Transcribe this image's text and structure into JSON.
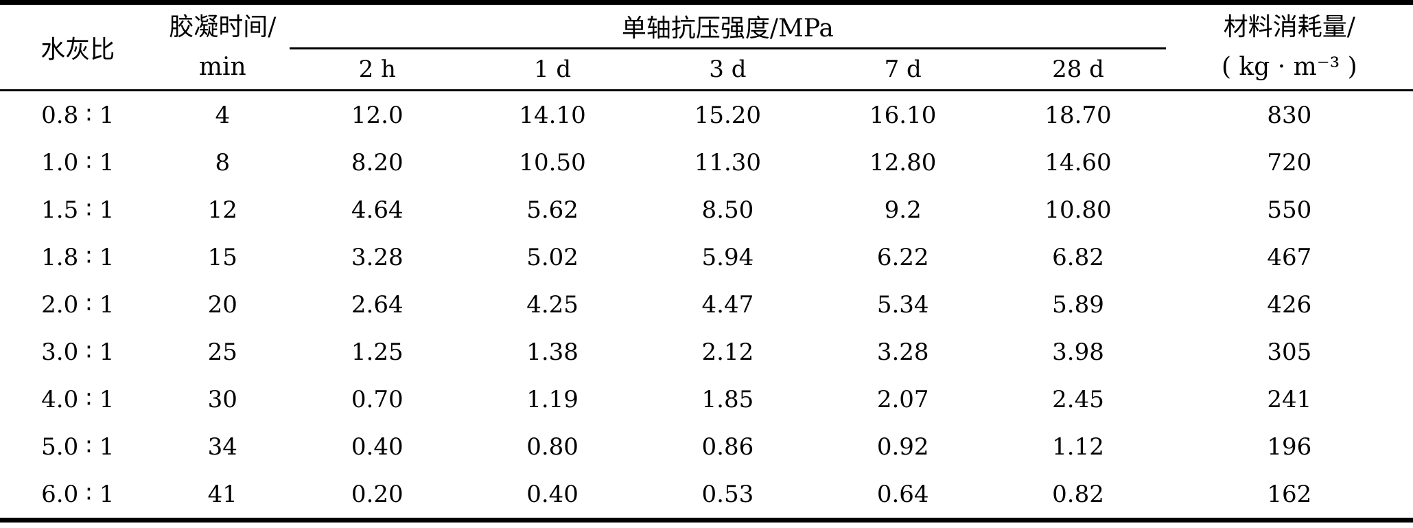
{
  "page": {
    "background_color": "#ffffff",
    "text_color": "#000000",
    "rule_color": "#000000"
  },
  "table": {
    "headers": {
      "ratio": "水灰比",
      "gel_time_line1": "胶凝时间/",
      "gel_time_line2": "min",
      "strength_group": "单轴抗压强度/MPa",
      "strength_subcols": [
        "2 h",
        "1 d",
        "3 d",
        "7 d",
        "28 d"
      ],
      "consumption_line1": "材料消耗量/",
      "consumption_line2": "( kg · m⁻³ )"
    },
    "rows": [
      {
        "ratio": "0.8 ∶ 1",
        "gel_time": "4",
        "strengths": [
          "12.0",
          "14.10",
          "15.20",
          "16.10",
          "18.70"
        ],
        "consumption": "830"
      },
      {
        "ratio": "1.0 ∶ 1",
        "gel_time": "8",
        "strengths": [
          "8.20",
          "10.50",
          "11.30",
          "12.80",
          "14.60"
        ],
        "consumption": "720"
      },
      {
        "ratio": "1.5 ∶ 1",
        "gel_time": "12",
        "strengths": [
          "4.64",
          "5.62",
          "8.50",
          "9.2",
          "10.80"
        ],
        "consumption": "550"
      },
      {
        "ratio": "1.8 ∶ 1",
        "gel_time": "15",
        "strengths": [
          "3.28",
          "5.02",
          "5.94",
          "6.22",
          "6.82"
        ],
        "consumption": "467"
      },
      {
        "ratio": "2.0 ∶ 1",
        "gel_time": "20",
        "strengths": [
          "2.64",
          "4.25",
          "4.47",
          "5.34",
          "5.89"
        ],
        "consumption": "426"
      },
      {
        "ratio": "3.0 ∶ 1",
        "gel_time": "25",
        "strengths": [
          "1.25",
          "1.38",
          "2.12",
          "3.28",
          "3.98"
        ],
        "consumption": "305"
      },
      {
        "ratio": "4.0 ∶ 1",
        "gel_time": "30",
        "strengths": [
          "0.70",
          "1.19",
          "1.85",
          "2.07",
          "2.45"
        ],
        "consumption": "241"
      },
      {
        "ratio": "5.0 ∶ 1",
        "gel_time": "34",
        "strengths": [
          "0.40",
          "0.80",
          "0.86",
          "0.92",
          "1.12"
        ],
        "consumption": "196"
      },
      {
        "ratio": "6.0 ∶ 1",
        "gel_time": "41",
        "strengths": [
          "0.20",
          "0.40",
          "0.53",
          "0.64",
          "0.82"
        ],
        "consumption": "162"
      }
    ],
    "strength_cell_names": [
      "cell-strength-2h",
      "cell-strength-1d",
      "cell-strength-3d",
      "cell-strength-7d",
      "cell-strength-28d"
    ]
  }
}
